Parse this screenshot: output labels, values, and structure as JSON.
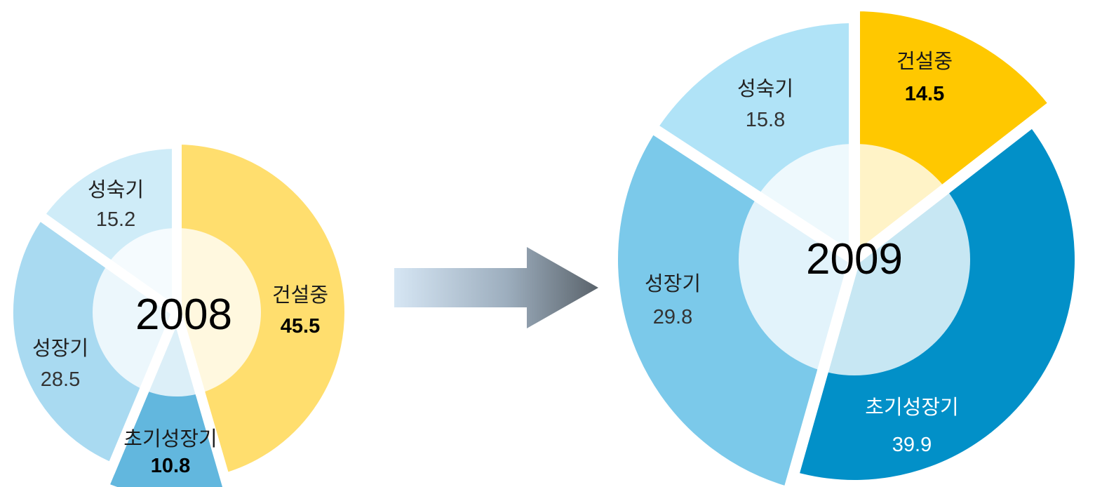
{
  "chart_data": [
    {
      "type": "pie",
      "center_label": "2008",
      "slices": [
        {
          "label": "건설중",
          "value": 45.5,
          "color": "#FFDE6E",
          "text_color": "#1a1a1a",
          "value_color": "#000000",
          "value_bold": true
        },
        {
          "label": "초기성장기",
          "value": 10.8,
          "color": "#62B7DE",
          "text_color": "#1a1a1a",
          "value_color": "#000000",
          "value_bold": true
        },
        {
          "label": "성장기",
          "value": 28.5,
          "color": "#A9DAF1",
          "text_color": "#222222",
          "value_color": "#333333",
          "value_bold": false
        },
        {
          "label": "성숙기",
          "value": 15.2,
          "color": "#CFECF8",
          "text_color": "#222222",
          "value_color": "#333333",
          "value_bold": false
        }
      ]
    },
    {
      "type": "pie",
      "center_label": "2009",
      "slices": [
        {
          "label": "건설중",
          "value": 14.5,
          "color": "#FFC800",
          "text_color": "#1a1a1a",
          "value_color": "#000000",
          "value_bold": true
        },
        {
          "label": "초기성장기",
          "value": 39.9,
          "color": "#0290C8",
          "text_color": "#ffffff",
          "value_color": "#ffffff",
          "value_bold": false
        },
        {
          "label": "성장기",
          "value": 29.8,
          "color": "#7BC9EA",
          "text_color": "#222222",
          "value_color": "#333333",
          "value_bold": false
        },
        {
          "label": "성숙기",
          "value": 15.8,
          "color": "#B0E3F7",
          "text_color": "#222222",
          "value_color": "#333333",
          "value_bold": false
        }
      ]
    }
  ]
}
